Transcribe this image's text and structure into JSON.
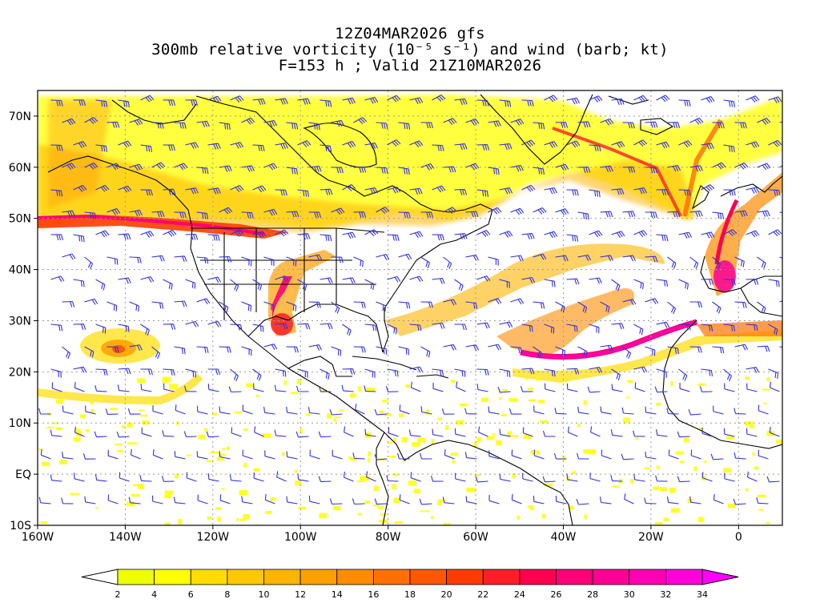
{
  "title": {
    "line1": "12Z04MAR2026 gfs",
    "line2": "300mb relative vorticity (10⁻⁵ s⁻¹) and wind (barb; kt)",
    "line3": "F=153 h ; Valid 21Z10MAR2026"
  },
  "map": {
    "lon_range": [
      -160,
      10
    ],
    "lat_range": [
      -10,
      75
    ],
    "lat_ticks": [
      {
        "value": 70,
        "label": "70N"
      },
      {
        "value": 60,
        "label": "60N"
      },
      {
        "value": 50,
        "label": "50N"
      },
      {
        "value": 40,
        "label": "40N"
      },
      {
        "value": 30,
        "label": "30N"
      },
      {
        "value": 20,
        "label": "20N"
      },
      {
        "value": 10,
        "label": "10N"
      },
      {
        "value": 0,
        "label": "EQ"
      },
      {
        "value": -10,
        "label": "10S"
      }
    ],
    "lon_ticks": [
      {
        "value": -160,
        "label": "160W"
      },
      {
        "value": -140,
        "label": "140W"
      },
      {
        "value": -120,
        "label": "120W"
      },
      {
        "value": -100,
        "label": "100W"
      },
      {
        "value": -80,
        "label": "80W"
      },
      {
        "value": -60,
        "label": "60W"
      },
      {
        "value": -40,
        "label": "40W"
      },
      {
        "value": -20,
        "label": "20W"
      },
      {
        "value": 0,
        "label": "0"
      }
    ],
    "barb_color": "#3030e0",
    "coast_color": "#000000"
  },
  "colorbar": {
    "levels": [
      "2",
      "4",
      "6",
      "8",
      "10",
      "12",
      "14",
      "16",
      "18",
      "20",
      "22",
      "24",
      "26",
      "28",
      "30",
      "32",
      "34"
    ],
    "colors": [
      "#eeff00",
      "#ffff00",
      "#ffdd00",
      "#ffc800",
      "#ffb400",
      "#ffa000",
      "#ff8c00",
      "#ff7000",
      "#ff5800",
      "#ff3c00",
      "#ff1e28",
      "#ff0050",
      "#ff0078",
      "#ff0096",
      "#ff00b4",
      "#ff00dc"
    ],
    "under_color": "#ffffff",
    "over_color": "#ff00ff"
  }
}
